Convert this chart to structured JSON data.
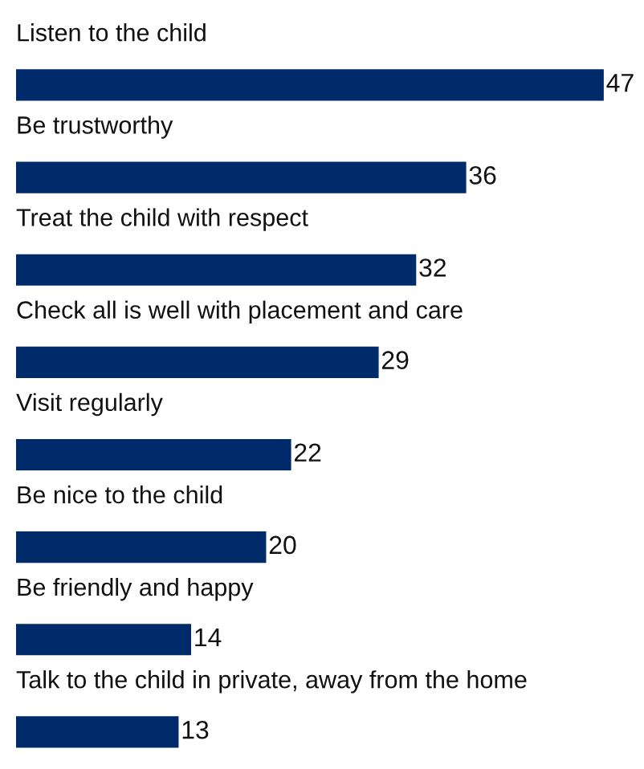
{
  "chart_data": {
    "type": "bar",
    "orientation": "horizontal",
    "categories": [
      "Listen to the child",
      "Be trustworthy",
      "Treat the child with respect",
      "Check all is well with placement and care",
      "Visit regularly",
      "Be nice to the child",
      "Be friendly and happy",
      "Talk to the child in private, away from the home"
    ],
    "values": [
      47,
      36,
      32,
      29,
      22,
      20,
      14,
      13
    ],
    "color": "#002b6b",
    "data_labels": true
  }
}
